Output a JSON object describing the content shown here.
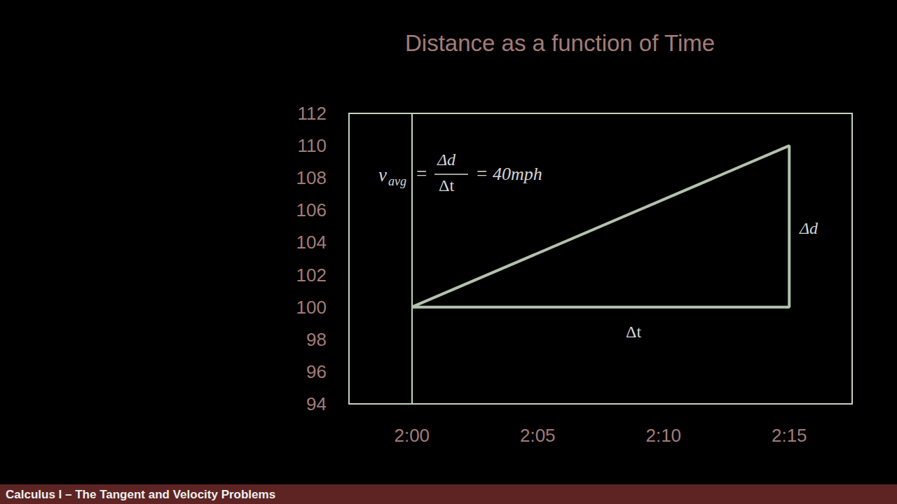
{
  "chart_data": {
    "type": "line",
    "title": "Distance as a function of Time",
    "x": [
      0,
      15,
      15,
      0
    ],
    "values": [
      100,
      110,
      100,
      100
    ],
    "color": "#b3c2ad",
    "xlim": [
      -2.5,
      17.5
    ],
    "xticks": [
      {
        "value": 0,
        "label": "2:00"
      },
      {
        "value": 5,
        "label": "2:05"
      },
      {
        "value": 10,
        "label": "2:10"
      },
      {
        "value": 15,
        "label": "2:15"
      }
    ],
    "ylim": [
      94,
      112
    ],
    "yticks": [
      94,
      96,
      98,
      100,
      102,
      104,
      106,
      108,
      110,
      112
    ],
    "grid": false,
    "annotations": {
      "vertical_leg": "Δd",
      "horizontal_leg": "Δt",
      "formula": {
        "symbol": "v",
        "subscript": "avg",
        "equals": "=",
        "numerator": "Δd",
        "denominator": "Δt",
        "result": "40mph"
      }
    }
  },
  "footer": "Calculus I – The Tangent and Velocity Problems"
}
